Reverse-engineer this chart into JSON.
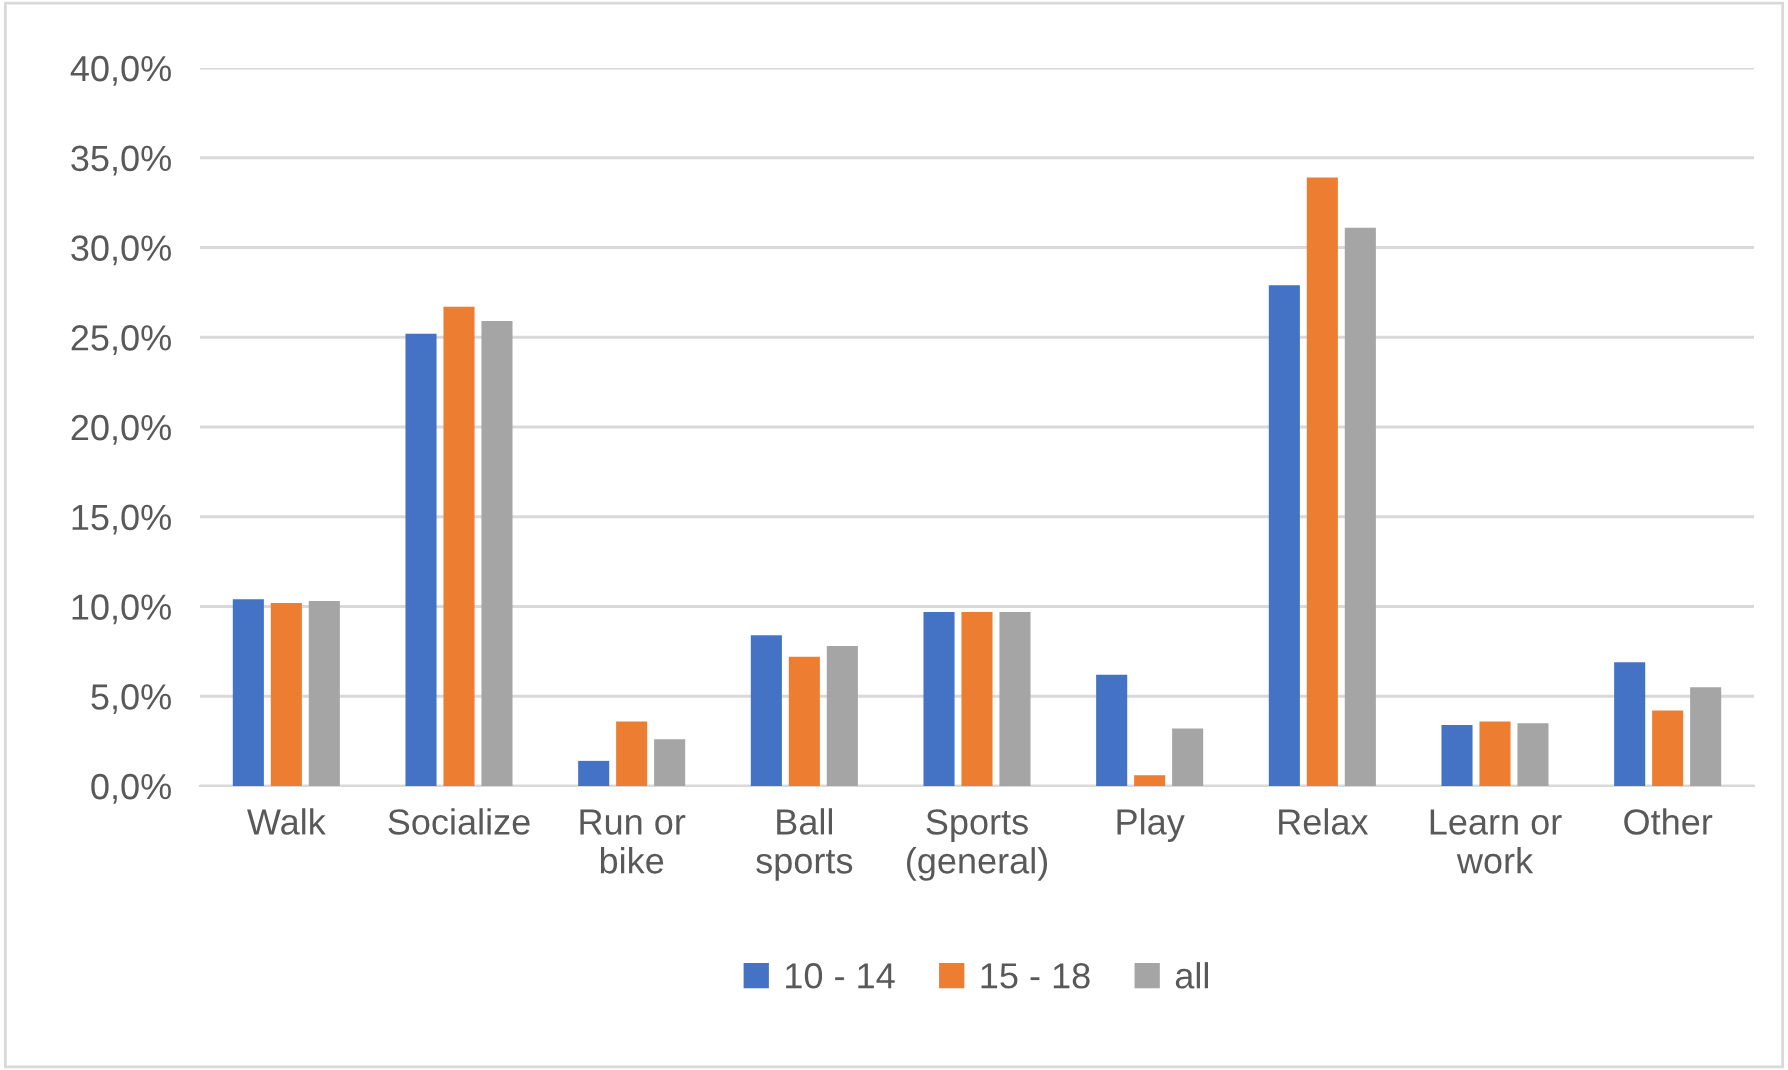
{
  "chart_data": {
    "type": "bar",
    "categories": [
      "Walk",
      "Socialize",
      "Run or\nbike",
      "Ball\nsports",
      "Sports\n(general)",
      "Play",
      "Relax",
      "Learn or\nwork",
      "Other"
    ],
    "series": [
      {
        "name": "10 - 14",
        "color": "#4472c4",
        "values": [
          10.4,
          25.2,
          1.4,
          8.4,
          9.7,
          6.2,
          27.9,
          3.4,
          6.9
        ]
      },
      {
        "name": "15 - 18",
        "color": "#ed7d31",
        "values": [
          10.2,
          26.7,
          3.6,
          7.2,
          9.7,
          0.6,
          33.9,
          3.6,
          4.2
        ]
      },
      {
        "name": "all",
        "color": "#a5a5a5",
        "values": [
          10.3,
          25.9,
          2.6,
          7.8,
          9.7,
          3.2,
          31.1,
          3.5,
          5.5
        ]
      }
    ],
    "ylim": [
      0,
      40
    ],
    "yticks": [
      {
        "value": 0,
        "label": "0,0%"
      },
      {
        "value": 5,
        "label": "5,0%"
      },
      {
        "value": 10,
        "label": "10,0%"
      },
      {
        "value": 15,
        "label": "15,0%"
      },
      {
        "value": 20,
        "label": "20,0%"
      },
      {
        "value": 25,
        "label": "25,0%"
      },
      {
        "value": 30,
        "label": "30,0%"
      },
      {
        "value": 35,
        "label": "35,0%"
      },
      {
        "value": 40,
        "label": "40,0%"
      }
    ],
    "grid": "y",
    "legend": "bottom"
  }
}
